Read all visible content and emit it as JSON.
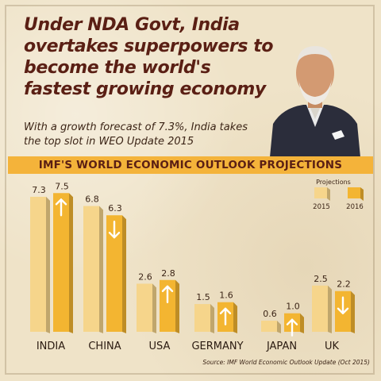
{
  "headline": "Under NDA Govt, India overtakes superpowers to become the world's fastest growing economy",
  "subheadline": "With a growth forecast of 7.3%, India takes the top slot in WEO Update 2015",
  "banner": "IMF'S WORLD ECONOMIC OUTLOOK PROJECTIONS",
  "source": "Source: IMF World Economic Outlook Update (Oct 2015)",
  "colors": {
    "bar_2015": "#f6d58b",
    "bar_2016": "#f3b531",
    "text_dark": "#5a1f14",
    "banner": "#f4b33a"
  },
  "chart_data": {
    "type": "bar",
    "categories": [
      "INDIA",
      "CHINA",
      "USA",
      "GERMANY",
      "JAPAN",
      "UK"
    ],
    "series": [
      {
        "name": "2015",
        "values": [
          7.3,
          6.8,
          2.6,
          1.5,
          0.6,
          2.5
        ]
      },
      {
        "name": "2016",
        "values": [
          7.5,
          6.3,
          2.8,
          1.6,
          1.0,
          2.2
        ]
      }
    ],
    "trend_2016": [
      "up",
      "down",
      "up",
      "up",
      "up",
      "down"
    ],
    "legend": {
      "title": "Projections",
      "placement": "top-right"
    },
    "grid": false
  }
}
